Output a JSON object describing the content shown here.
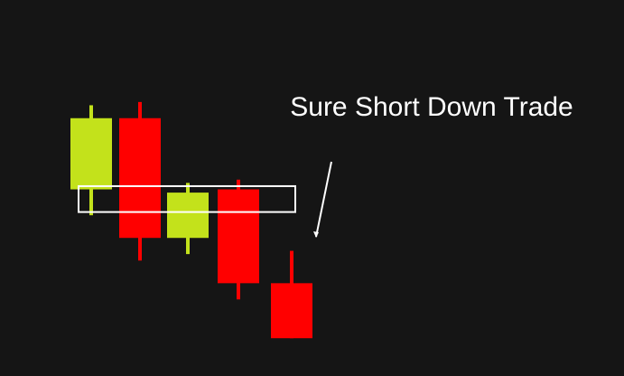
{
  "chart_data": {
    "type": "candlestick",
    "background": "#151515",
    "colors": {
      "bullish": "#c3e21b",
      "bearish": "#ff0000",
      "annotation": "#ffffff"
    },
    "ylim": [
      0,
      100
    ],
    "candles": [
      {
        "direction": "bullish",
        "open": 56,
        "high": 82,
        "low": 48,
        "close": 78
      },
      {
        "direction": "bearish",
        "open": 78,
        "high": 83,
        "low": 34,
        "close": 41
      },
      {
        "direction": "bullish",
        "open": 41,
        "high": 58,
        "low": 36,
        "close": 55
      },
      {
        "direction": "bearish",
        "open": 56,
        "high": 59,
        "low": 22,
        "close": 27
      },
      {
        "direction": "bearish",
        "open": 27,
        "high": 37,
        "low": 10,
        "close": 10
      }
    ],
    "highlight_zone": {
      "from_candle": 0,
      "to_candle": 4,
      "low": 49,
      "high": 57
    },
    "annotation": {
      "text": "Sure Short Down Trade",
      "arrow": "down"
    }
  }
}
